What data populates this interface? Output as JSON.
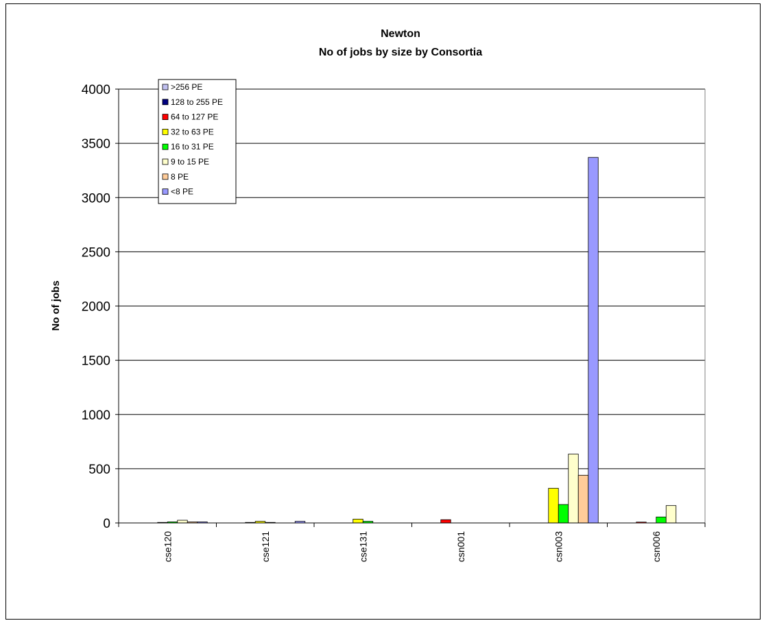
{
  "chart_data": {
    "type": "bar",
    "title": "Newton",
    "subtitle": "No of jobs by size by Consortia",
    "xlabel": "",
    "ylabel": "No of jobs",
    "ylim": [
      0,
      4000
    ],
    "yticks": [
      0,
      500,
      1000,
      1500,
      2000,
      2500,
      3000,
      3500,
      4000
    ],
    "grid": true,
    "legend_position": "top-left",
    "categories": [
      "cse120",
      "cse121",
      "cse131",
      "csn001",
      "csn003",
      "csn006"
    ],
    "series": [
      {
        "name": ">256 PE",
        "color": "#c0c0f0",
        "values": [
          0,
          0,
          0,
          0,
          0,
          0
        ]
      },
      {
        "name": "128 to 255 PE",
        "color": "#000080",
        "values": [
          0,
          0,
          0,
          0,
          0,
          0
        ]
      },
      {
        "name": "64 to 127 PE",
        "color": "#ff0000",
        "values": [
          0,
          5,
          0,
          30,
          0,
          8
        ]
      },
      {
        "name": "32 to 63 PE",
        "color": "#ffff00",
        "values": [
          5,
          15,
          35,
          0,
          320,
          0
        ]
      },
      {
        "name": "16 to 31 PE",
        "color": "#00ff00",
        "values": [
          10,
          5,
          15,
          0,
          170,
          55
        ]
      },
      {
        "name": "9 to 15 PE",
        "color": "#ffffcc",
        "values": [
          25,
          0,
          0,
          0,
          635,
          160
        ]
      },
      {
        "name": "8 PE",
        "color": "#ffcc99",
        "values": [
          10,
          0,
          0,
          0,
          440,
          0
        ]
      },
      {
        "name": "<8 PE",
        "color": "#9999ff",
        "values": [
          10,
          15,
          0,
          0,
          3370,
          0
        ]
      }
    ]
  }
}
